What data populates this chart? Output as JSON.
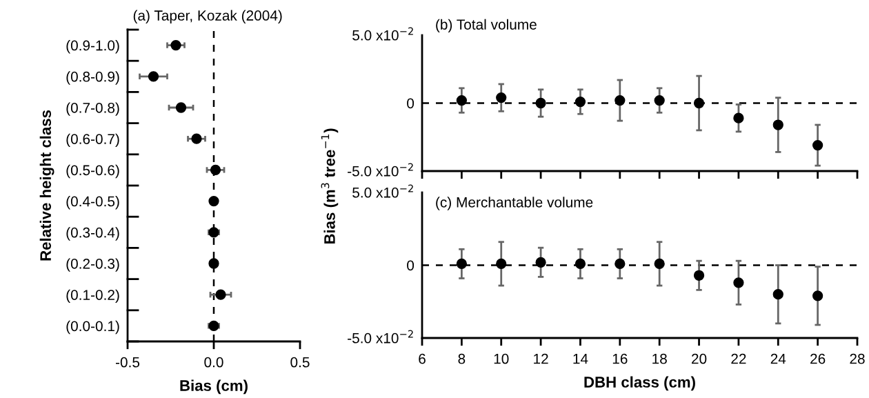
{
  "chart_data": [
    {
      "type": "scatter",
      "title": "(a) Taper, Kozak (2004)",
      "xlabel": "Bias (cm)",
      "ylabel": "Relative height class",
      "orientation": "horizontal",
      "categories": [
        "(0.9-1.0)",
        "(0.8-0.9)",
        "(0.7-0.8)",
        "(0.6-0.7)",
        "(0.5-0.6)",
        "(0.4-0.5)",
        "(0.3-0.4)",
        "(0.2-0.3)",
        "(0.1-0.2)",
        "(0.0-0.1)"
      ],
      "values": [
        -0.22,
        -0.35,
        -0.19,
        -0.1,
        0.01,
        0.0,
        0.0,
        0.0,
        0.04,
        0.0
      ],
      "errors": [
        0.05,
        0.08,
        0.07,
        0.05,
        0.05,
        0.02,
        0.03,
        0.02,
        0.06,
        0.03
      ],
      "color": "#000000",
      "marker": "circle",
      "xlim": [
        -0.5,
        0.5
      ],
      "xticks": [
        {
          "value": -0.5,
          "label": "-0.5"
        },
        {
          "value": 0.0,
          "label": "0.0"
        },
        {
          "value": 0.5,
          "label": "0.5"
        }
      ],
      "ref_lines": [
        {
          "axis": "x",
          "value": 0,
          "line_style": "dashed"
        }
      ]
    },
    {
      "type": "scatter",
      "title": "(b) Total volume",
      "ylabel": "Bias (m$^{3}$ tree$^{−1}$)",
      "x": [
        8,
        10,
        12,
        14,
        16,
        18,
        20,
        22,
        24,
        26
      ],
      "values": [
        0.002,
        0.004,
        0.0,
        0.001,
        0.002,
        0.002,
        0.0,
        -0.011,
        -0.016,
        -0.031
      ],
      "errors": [
        0.009,
        0.01,
        0.01,
        0.009,
        0.015,
        0.009,
        0.02,
        0.01,
        0.02,
        0.015
      ],
      "color": "#000000",
      "marker": "circle",
      "xlim": [
        6,
        28
      ],
      "xticks": [
        6,
        8,
        10,
        12,
        14,
        16,
        18,
        20,
        22,
        24,
        26,
        28
      ],
      "tick_labels": "y",
      "ylim": [
        -0.05,
        0.05
      ],
      "yticks": [
        {
          "value": 0.05,
          "label": "5.0 x10$^{−2}$"
        },
        {
          "value": 0,
          "label": "0"
        },
        {
          "value": -0.05,
          "label": "-5.0 x10$^{−2}$"
        }
      ],
      "ref_lines": [
        {
          "axis": "y",
          "value": 0,
          "line_style": "dashed"
        }
      ]
    },
    {
      "type": "scatter",
      "title": "(c) Merchantable volume",
      "xlabel": "DBH class (cm)",
      "x": [
        8,
        10,
        12,
        14,
        16,
        18,
        20,
        22,
        24,
        26
      ],
      "values": [
        0.001,
        0.001,
        0.002,
        0.001,
        0.001,
        0.001,
        -0.007,
        -0.012,
        -0.02,
        -0.021
      ],
      "errors": [
        0.01,
        0.015,
        0.01,
        0.01,
        0.01,
        0.015,
        0.01,
        0.015,
        0.02,
        0.02
      ],
      "color": "#000000",
      "marker": "circle",
      "xlim": [
        6,
        28
      ],
      "xticks": [
        6,
        8,
        10,
        12,
        14,
        16,
        18,
        20,
        22,
        24,
        26,
        28
      ],
      "ylim": [
        -0.05,
        0.05
      ],
      "yticks": [
        {
          "value": 0.05,
          "label": "5.0 x10$^{−2}$"
        },
        {
          "value": 0,
          "label": "0"
        },
        {
          "value": -0.05,
          "label": "-5.0 x10$^{−2}$"
        }
      ],
      "ref_lines": [
        {
          "axis": "y",
          "value": 0,
          "line_style": "dashed"
        }
      ]
    }
  ]
}
